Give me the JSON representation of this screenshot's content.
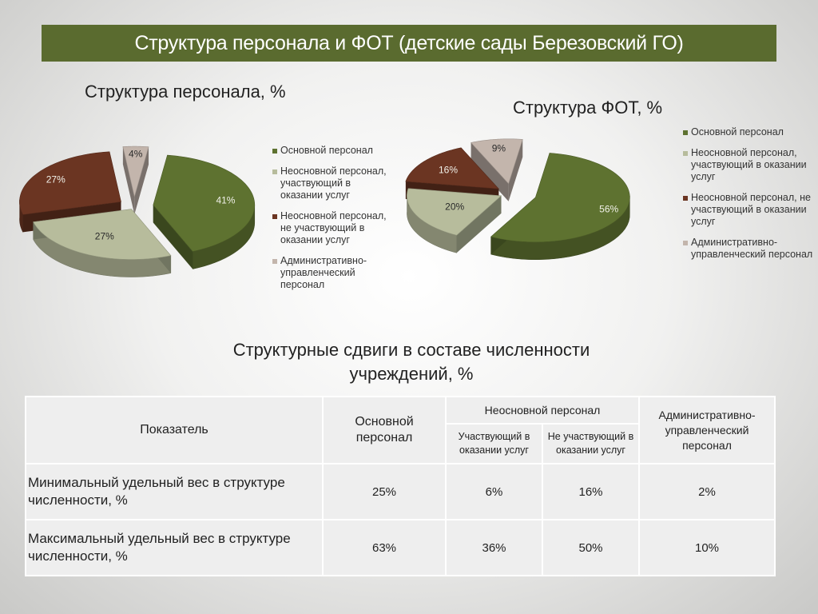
{
  "page": {
    "title": "Структура персонала и ФОТ (детские сады Березовский ГО)",
    "section_title_line1": "Структурные сдвиги в составе численности",
    "section_title_line2": "учреждений, %"
  },
  "colors": {
    "title_bar": "#5a6b2f",
    "main_staff": "#5e7230",
    "non_core_participating": "#b7bc9c",
    "non_core_not_participating": "#6b3522",
    "administrative": "#c3b5ac"
  },
  "legend": [
    {
      "label": "Основной персонал",
      "color": "#5e7230"
    },
    {
      "label": "Неосновной персонал, участвующий в оказании услуг",
      "color": "#b7bc9c"
    },
    {
      "label": "Неосновной персонал, не участвующий в оказании услуг",
      "color": "#6b3522"
    },
    {
      "label": "Административно-управленческий персонал",
      "color": "#c3b5ac"
    }
  ],
  "chart_data": [
    {
      "type": "pie",
      "title": "Структура персонала, %",
      "categories": [
        "Основной персонал",
        "Неосновной персонал, участвующий в оказании услуг",
        "Неосновной персонал, не участвующий в оказании услуг",
        "Административно-управленческий персонал"
      ],
      "values": [
        41,
        27,
        27,
        4
      ],
      "data_labels": [
        "41%",
        "27%",
        "27%",
        "4%"
      ],
      "legend_position": "right",
      "style": "3d-exploded"
    },
    {
      "type": "pie",
      "title": "Структура ФОТ, %",
      "categories": [
        "Основной персонал",
        "Неосновной персонал, участвующий в оказании услуг",
        "Неосновной персонал, не участвующий в оказании услуг",
        "Административно-управленческий персонал"
      ],
      "values": [
        56,
        20,
        16,
        9
      ],
      "data_labels": [
        "56%",
        "20%",
        "16%",
        "9%"
      ],
      "legend_position": "right",
      "style": "3d-exploded"
    },
    {
      "type": "table",
      "title": "Структурные сдвиги в составе численности учреждений, %",
      "header": {
        "indicator": "Показатель",
        "main_staff": "Основной персонал",
        "non_core_group": "Неосновной персонал",
        "participating": "Участвующий в оказании услуг",
        "not_participating": "Не участвующий в оказании услуг",
        "administrative": "Административно-управленческий персонал"
      },
      "rows": [
        {
          "label": "Минимальный удельный вес в структуре численности, %",
          "values": [
            "25%",
            "6%",
            "16%",
            "2%"
          ]
        },
        {
          "label": "Максимальный удельный вес в структуре численности, %",
          "values": [
            "63%",
            "36%",
            "50%",
            "10%"
          ]
        }
      ]
    }
  ]
}
